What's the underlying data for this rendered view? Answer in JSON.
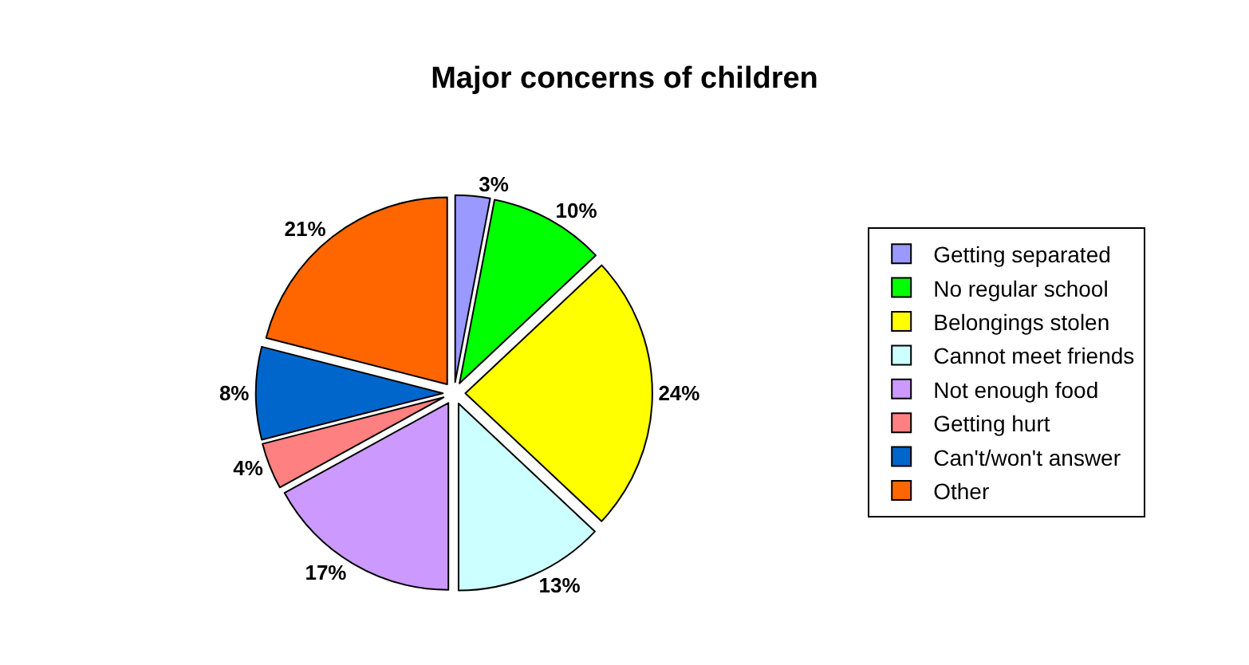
{
  "chart_data": {
    "type": "pie",
    "title": "Major concerns of children",
    "categories": [
      "Getting separated",
      "No regular school",
      "Belongings stolen",
      "Cannot meet friends",
      "Not enough food",
      "Getting hurt",
      "Can't/won't answer",
      "Other"
    ],
    "values": [
      3,
      10,
      24,
      13,
      17,
      4,
      8,
      21
    ],
    "value_labels": [
      "3%",
      "10%",
      "24%",
      "13%",
      "17%",
      "4%",
      "8%",
      "21%"
    ],
    "colors": [
      "#9999ff",
      "#00ff00",
      "#ffff00",
      "#ccffff",
      "#cc99ff",
      "#ff8080",
      "#0066cc",
      "#ff6600"
    ],
    "legend": "right"
  }
}
